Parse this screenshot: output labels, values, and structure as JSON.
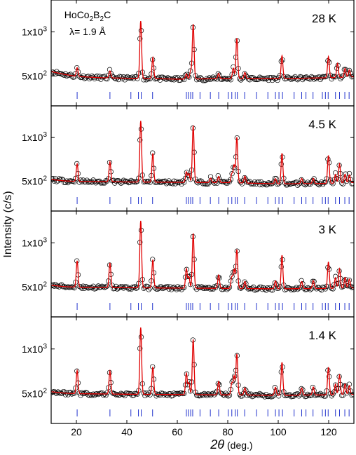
{
  "chart_data": {
    "type": "line",
    "title": "",
    "xlabel_main": "2θ",
    "xlabel_unit": "(deg.)",
    "ylabel": "Intensity (c/s)",
    "xlim": [
      10,
      130
    ],
    "ylim": [
      400,
      1250
    ],
    "x_ticks": [
      20,
      40,
      60,
      80,
      100,
      120
    ],
    "y_ticks": [
      {
        "value": 500,
        "mantissa": "5x10",
        "exp": "2"
      },
      {
        "value": 1000,
        "mantissa": "1x10",
        "exp": "3"
      }
    ],
    "sample_label": {
      "pre": "HoCo",
      "sub1": "2",
      "mid": "B",
      "sub2": "2",
      "post": "C"
    },
    "wavelength_label": "λ= 1.9 Å",
    "colors": {
      "observed": "#000000",
      "calculated": "#e00000",
      "bragg": "#2233cc"
    },
    "bragg_positions": [
      20.3,
      33.3,
      41.6,
      44.6,
      45.7,
      50.2,
      63.6,
      64.4,
      65.3,
      66.1,
      69.0,
      73.1,
      76.4,
      80.2,
      81.6,
      83.0,
      83.8,
      86.7,
      91.4,
      95.9,
      98.9,
      100.3,
      101.7,
      106.3,
      109.3,
      111.0,
      113.8,
      117.5,
      118.7,
      119.8,
      122.7,
      124.3,
      126.4,
      128.1
    ],
    "panels": [
      {
        "temperature": "28 K",
        "background": [
          [
            10,
            550
          ],
          [
            15,
            520
          ],
          [
            20,
            495
          ],
          [
            30,
            480
          ],
          [
            40,
            475
          ],
          [
            60,
            465
          ],
          [
            80,
            470
          ],
          [
            100,
            470
          ],
          [
            120,
            480
          ],
          [
            130,
            490
          ]
        ],
        "peaks": [
          [
            20.3,
            100
          ],
          [
            33.3,
            80
          ],
          [
            45.5,
            650
          ],
          [
            50.3,
            240
          ],
          [
            63.6,
            60
          ],
          [
            65.3,
            90
          ],
          [
            66.3,
            620
          ],
          [
            76.4,
            60
          ],
          [
            82.2,
            120
          ],
          [
            83.6,
            460
          ],
          [
            86.8,
            70
          ],
          [
            101.5,
            260
          ],
          [
            119.9,
            240
          ],
          [
            123.5,
            160
          ],
          [
            126.5,
            100
          ],
          [
            128.2,
            80
          ]
        ]
      },
      {
        "temperature": "4.5 K",
        "background": [
          [
            10,
            520
          ],
          [
            15,
            505
          ],
          [
            20,
            498
          ],
          [
            40,
            492
          ],
          [
            60,
            488
          ],
          [
            80,
            485
          ],
          [
            100,
            470
          ],
          [
            120,
            475
          ],
          [
            130,
            485
          ]
        ],
        "peaks": [
          [
            20.3,
            200
          ],
          [
            33.3,
            230
          ],
          [
            45.5,
            700
          ],
          [
            50.3,
            330
          ],
          [
            63.6,
            120
          ],
          [
            64.6,
            100
          ],
          [
            66.3,
            650
          ],
          [
            73.2,
            50
          ],
          [
            76.4,
            70
          ],
          [
            81.6,
            100
          ],
          [
            82.5,
            200
          ],
          [
            83.6,
            520
          ],
          [
            86.8,
            80
          ],
          [
            98.9,
            60
          ],
          [
            101.5,
            350
          ],
          [
            109.3,
            60
          ],
          [
            113.9,
            60
          ],
          [
            119.9,
            320
          ],
          [
            122.7,
            100
          ],
          [
            124.3,
            220
          ],
          [
            126.5,
            100
          ],
          [
            128.2,
            90
          ]
        ]
      },
      {
        "temperature": "3 K",
        "background": [
          [
            10,
            520
          ],
          [
            15,
            505
          ],
          [
            20,
            498
          ],
          [
            40,
            492
          ],
          [
            60,
            488
          ],
          [
            80,
            485
          ],
          [
            100,
            480
          ],
          [
            120,
            485
          ],
          [
            130,
            490
          ]
        ],
        "peaks": [
          [
            20.3,
            300
          ],
          [
            33.3,
            280
          ],
          [
            45.5,
            760
          ],
          [
            50.3,
            320
          ],
          [
            63.6,
            220
          ],
          [
            64.6,
            130
          ],
          [
            66.3,
            620
          ],
          [
            76.4,
            150
          ],
          [
            81.6,
            130
          ],
          [
            82.5,
            210
          ],
          [
            83.6,
            440
          ],
          [
            86.8,
            80
          ],
          [
            98.9,
            90
          ],
          [
            101.5,
            380
          ],
          [
            109.3,
            80
          ],
          [
            113.9,
            90
          ],
          [
            119.9,
            300
          ],
          [
            122.7,
            120
          ],
          [
            124.3,
            220
          ],
          [
            126.5,
            120
          ],
          [
            128.2,
            100
          ]
        ]
      },
      {
        "temperature": "1.4 K",
        "background": [
          [
            10,
            520
          ],
          [
            15,
            505
          ],
          [
            20,
            498
          ],
          [
            40,
            492
          ],
          [
            60,
            488
          ],
          [
            80,
            485
          ],
          [
            100,
            480
          ],
          [
            120,
            485
          ],
          [
            130,
            490
          ]
        ],
        "peaks": [
          [
            20.3,
            260
          ],
          [
            33.3,
            260
          ],
          [
            45.5,
            750
          ],
          [
            50.3,
            310
          ],
          [
            63.6,
            240
          ],
          [
            64.6,
            130
          ],
          [
            66.3,
            620
          ],
          [
            76.4,
            150
          ],
          [
            81.6,
            130
          ],
          [
            82.5,
            210
          ],
          [
            83.6,
            460
          ],
          [
            86.8,
            80
          ],
          [
            98.9,
            90
          ],
          [
            101.5,
            370
          ],
          [
            109.3,
            80
          ],
          [
            113.9,
            90
          ],
          [
            119.9,
            310
          ],
          [
            122.7,
            120
          ],
          [
            124.3,
            220
          ],
          [
            126.5,
            120
          ],
          [
            128.2,
            100
          ]
        ]
      }
    ]
  }
}
